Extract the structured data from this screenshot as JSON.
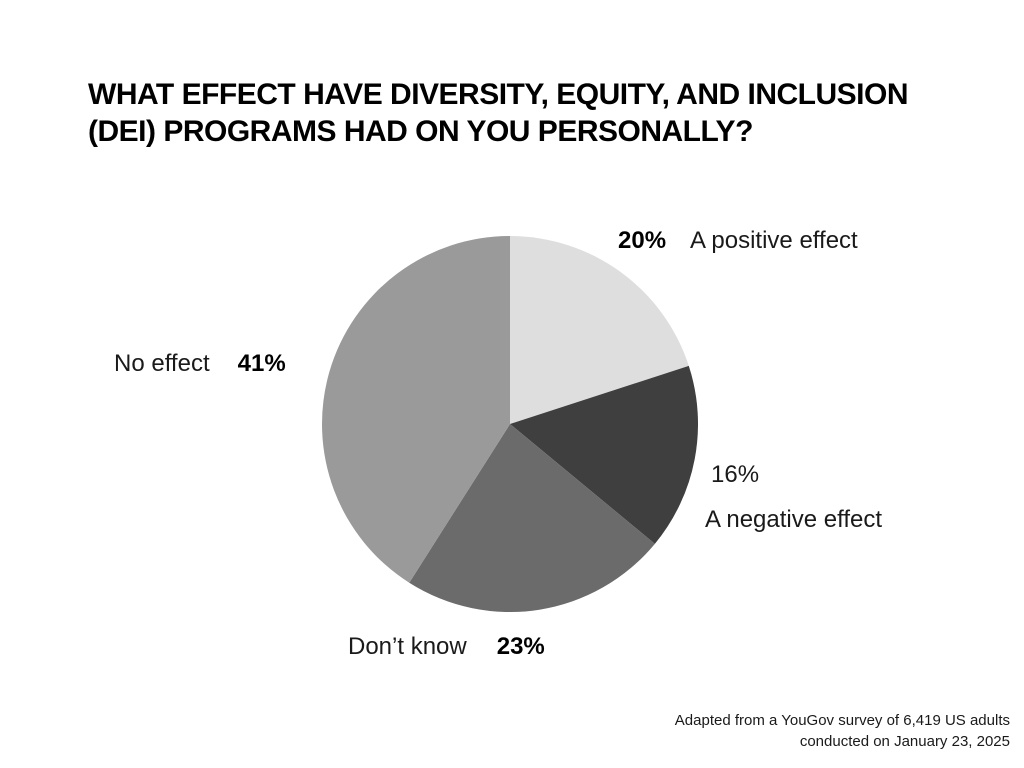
{
  "title": "WHAT EFFECT HAVE DIVERSITY, EQUITY, AND INCLUSION (DEI) PROGRAMS HAD ON YOU PERSONALLY?",
  "chart_data": {
    "type": "pie",
    "title": "What effect have diversity, equity, and inclusion (DEI) programs had on you personally?",
    "start_angle_deg": 0,
    "direction": "clockwise",
    "slices": [
      {
        "label": "A positive effect",
        "value": 20,
        "pct_label": "20%",
        "color": "#dedede"
      },
      {
        "label": "A negative effect",
        "value": 16,
        "pct_label": "16%",
        "color": "#3f3f3f"
      },
      {
        "label": "Don’t know",
        "value": 23,
        "pct_label": "23%",
        "color": "#6b6b6b"
      },
      {
        "label": "No effect",
        "value": 41,
        "pct_label": "41%",
        "color": "#9a9a9a"
      }
    ],
    "legend_position": "around-slices",
    "grid": false
  },
  "footer": {
    "line1": "Adapted from a YouGov survey of 6,419 US adults",
    "line2": "conducted on January 23, 2025"
  }
}
